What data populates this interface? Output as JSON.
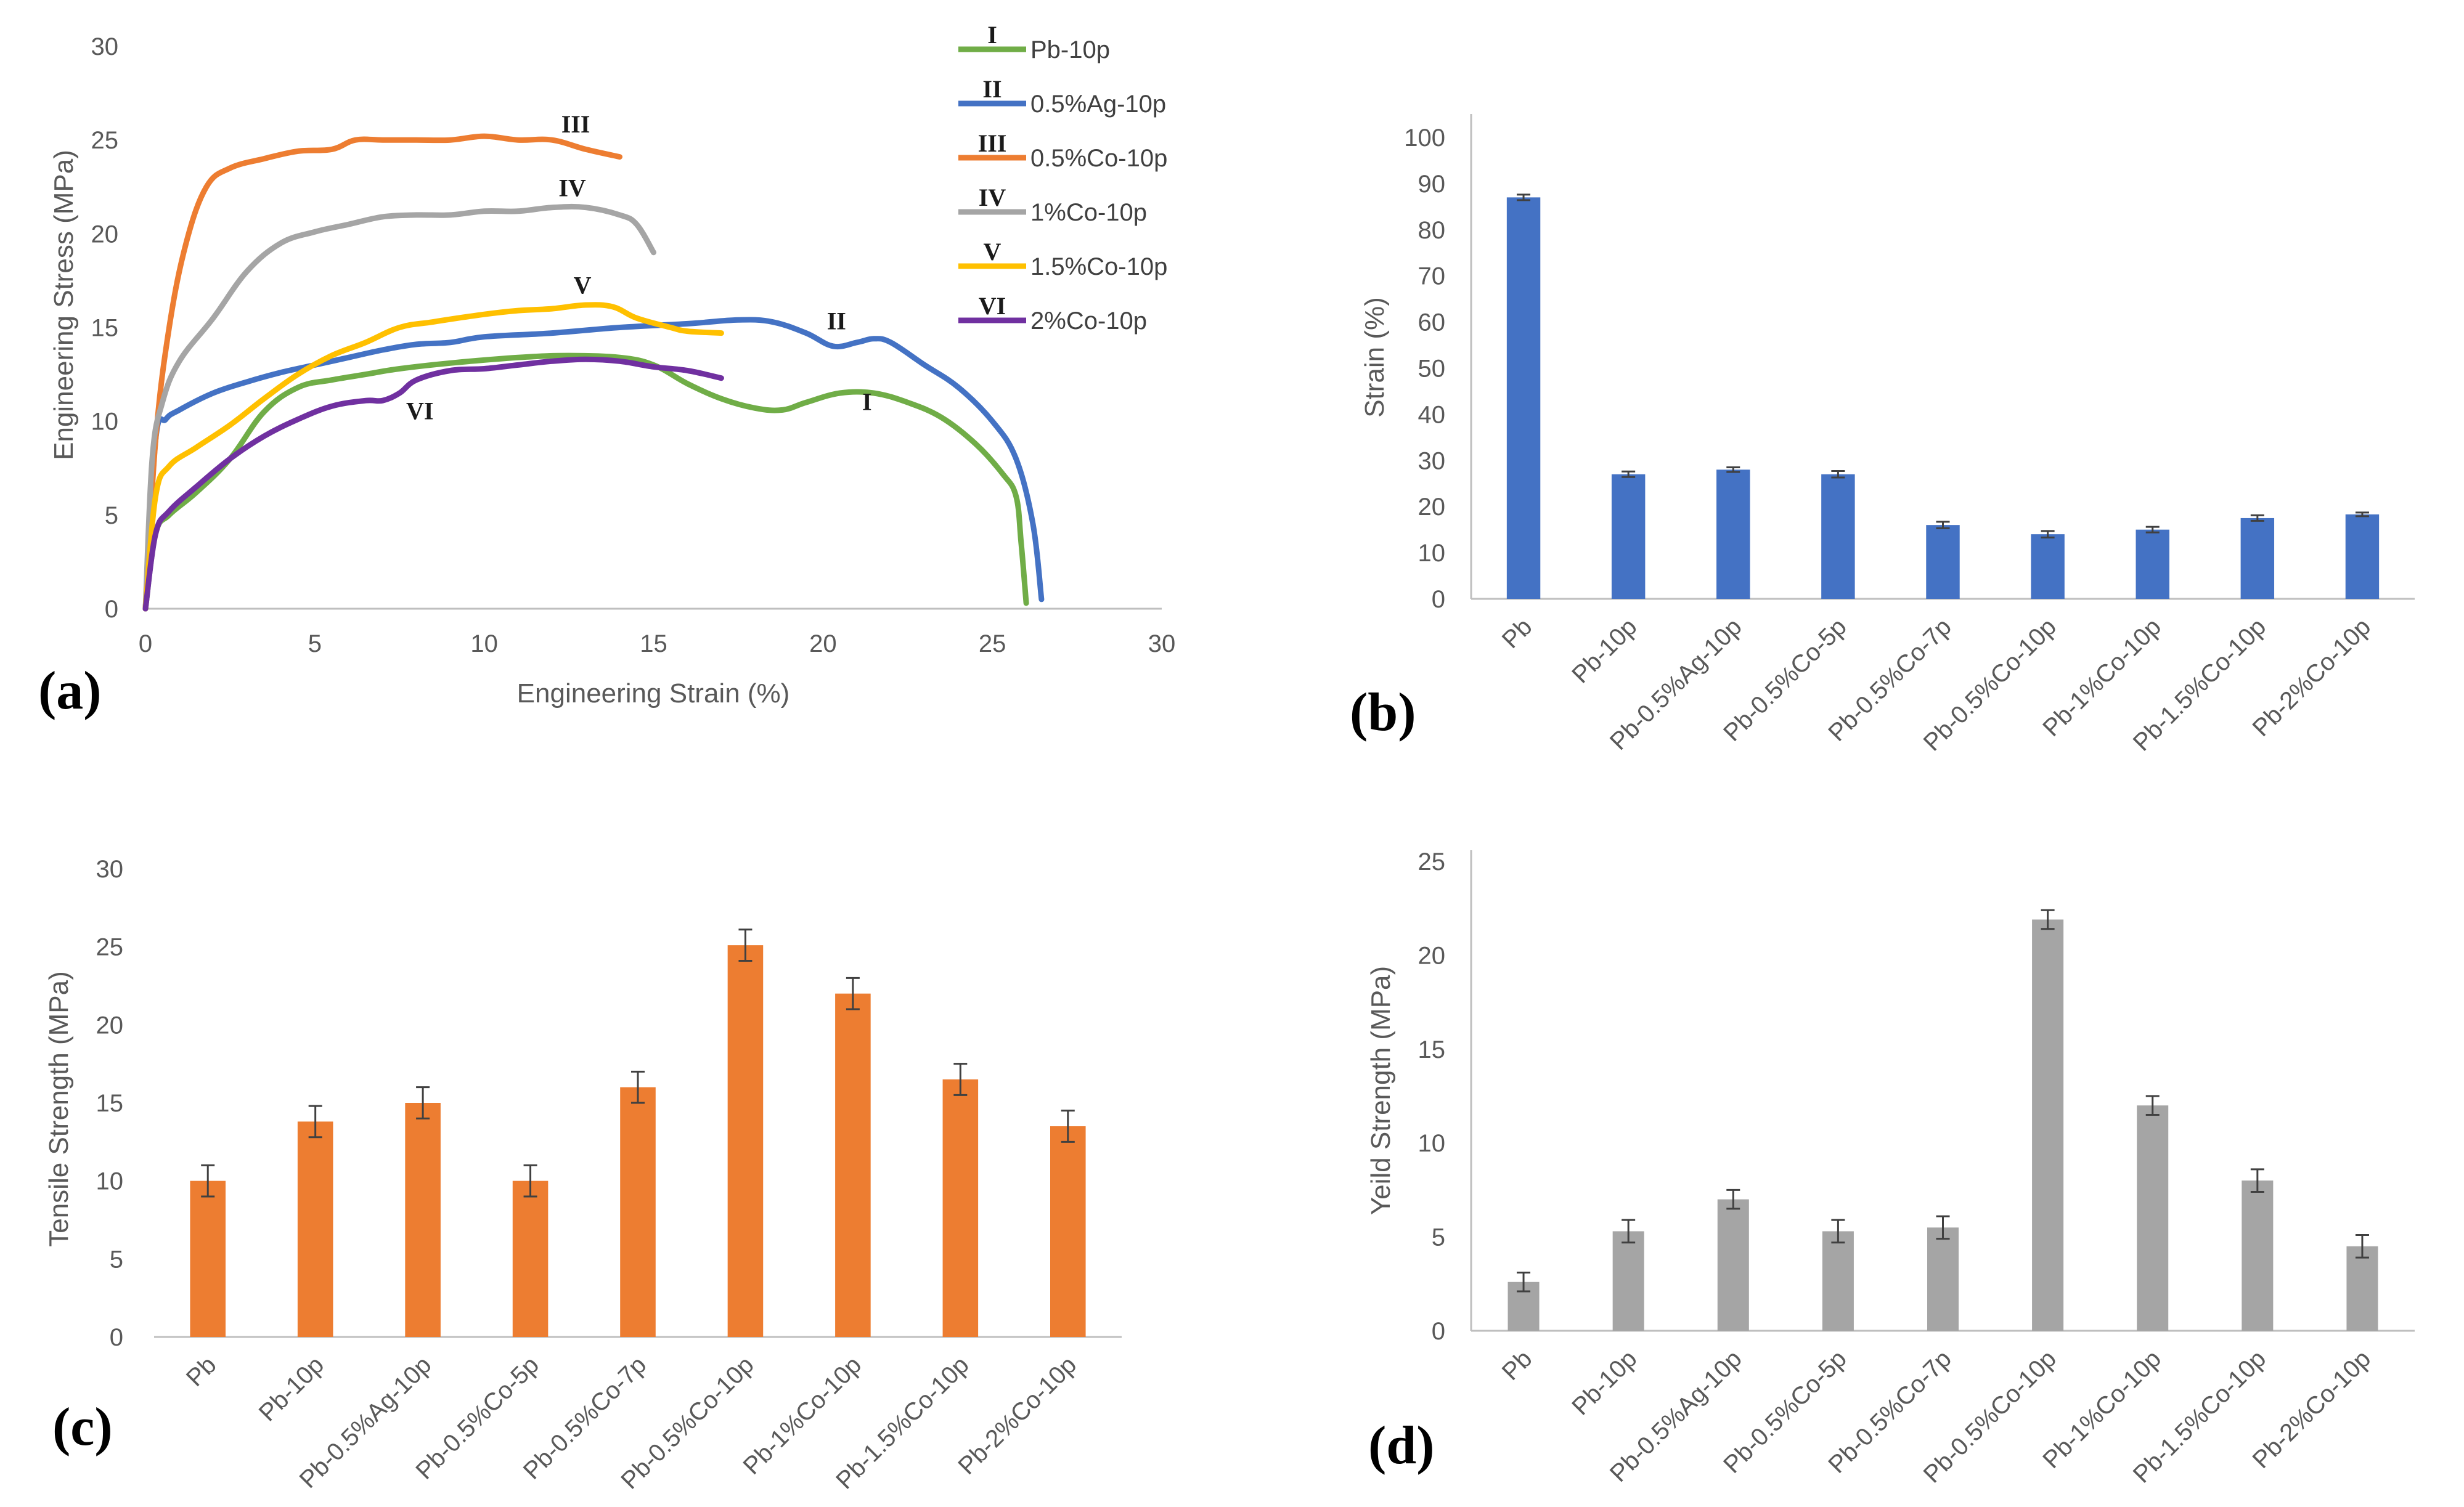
{
  "chart_data": [
    {
      "panel": "(a)",
      "type": "line",
      "title": "",
      "xlabel": "Engineering Strain (%)",
      "ylabel": "Engineering Stress (MPa)",
      "xlim": [
        0,
        30
      ],
      "ylim": [
        0,
        30
      ],
      "xticks": [
        "0",
        "5",
        "10",
        "15",
        "20",
        "25",
        "30"
      ],
      "yticks": [
        "0",
        "5",
        "10",
        "15",
        "20",
        "25",
        "30"
      ],
      "legend_position": "top-right",
      "series": [
        {
          "roman": "I",
          "name": "Pb-10p",
          "color": "#70ad47",
          "label_at": [
            21.3,
            10.6
          ],
          "points": [
            [
              0,
              0
            ],
            [
              0.3,
              4
            ],
            [
              0.7,
              5
            ],
            [
              1.5,
              6.2
            ],
            [
              2.5,
              8
            ],
            [
              3.5,
              10.5
            ],
            [
              4.5,
              11.8
            ],
            [
              5.5,
              12.2
            ],
            [
              6.5,
              12.5
            ],
            [
              7.5,
              12.8
            ],
            [
              9,
              13.1
            ],
            [
              11,
              13.4
            ],
            [
              12.5,
              13.5
            ],
            [
              14,
              13.4
            ],
            [
              15,
              13
            ],
            [
              16,
              12
            ],
            [
              17,
              11.2
            ],
            [
              18,
              10.7
            ],
            [
              18.8,
              10.6
            ],
            [
              19.5,
              11
            ],
            [
              20.5,
              11.5
            ],
            [
              21.5,
              11.5
            ],
            [
              22.5,
              11
            ],
            [
              23.5,
              10.2
            ],
            [
              24.5,
              8.8
            ],
            [
              25.3,
              7.2
            ],
            [
              25.7,
              6
            ],
            [
              25.85,
              3.5
            ],
            [
              26.0,
              0.3
            ]
          ]
        },
        {
          "roman": "II",
          "name": "0.5%Ag-10p",
          "color": "#4472c4",
          "label_at": [
            20.4,
            14.9
          ],
          "points": [
            [
              0,
              0
            ],
            [
              0.3,
              9
            ],
            [
              0.6,
              10.1
            ],
            [
              1,
              10.6
            ],
            [
              2,
              11.5
            ],
            [
              3,
              12.1
            ],
            [
              4,
              12.6
            ],
            [
              5,
              13
            ],
            [
              6,
              13.4
            ],
            [
              7,
              13.8
            ],
            [
              8,
              14.1
            ],
            [
              9,
              14.2
            ],
            [
              10,
              14.5
            ],
            [
              12,
              14.7
            ],
            [
              14,
              15
            ],
            [
              16,
              15.2
            ],
            [
              17.5,
              15.4
            ],
            [
              18.5,
              15.3
            ],
            [
              19.5,
              14.7
            ],
            [
              20.3,
              14
            ],
            [
              21,
              14.2
            ],
            [
              21.5,
              14.4
            ],
            [
              22,
              14.2
            ],
            [
              23,
              13
            ],
            [
              24,
              11.8
            ],
            [
              25,
              10
            ],
            [
              25.7,
              8
            ],
            [
              26.2,
              4.5
            ],
            [
              26.45,
              0.5
            ]
          ]
        },
        {
          "roman": "III",
          "name": "0.5%Co-10p",
          "color": "#ed7d31",
          "label_at": [
            12.7,
            25.4
          ],
          "points": [
            [
              0,
              0
            ],
            [
              0.3,
              9
            ],
            [
              0.7,
              15
            ],
            [
              1.2,
              19.5
            ],
            [
              1.8,
              22.5
            ],
            [
              2.5,
              23.5
            ],
            [
              3.5,
              24
            ],
            [
              4.5,
              24.4
            ],
            [
              5.5,
              24.5
            ],
            [
              6.2,
              25
            ],
            [
              7,
              25
            ],
            [
              8,
              25
            ],
            [
              9,
              25
            ],
            [
              10,
              25.2
            ],
            [
              11,
              25
            ],
            [
              12,
              25
            ],
            [
              13,
              24.5
            ],
            [
              14,
              24.1
            ]
          ]
        },
        {
          "roman": "IV",
          "name": "1%Co-10p",
          "color": "#a5a5a5",
          "label_at": [
            12.6,
            22.0
          ],
          "points": [
            [
              0,
              0
            ],
            [
              0.2,
              8
            ],
            [
              0.5,
              11
            ],
            [
              1,
              13.2
            ],
            [
              2,
              15.5
            ],
            [
              3,
              18
            ],
            [
              4,
              19.5
            ],
            [
              5,
              20.1
            ],
            [
              6,
              20.5
            ],
            [
              7,
              20.9
            ],
            [
              8,
              21
            ],
            [
              9,
              21
            ],
            [
              10,
              21.2
            ],
            [
              11,
              21.2
            ],
            [
              12,
              21.4
            ],
            [
              13,
              21.4
            ],
            [
              14,
              21
            ],
            [
              14.5,
              20.5
            ],
            [
              15,
              19
            ]
          ]
        },
        {
          "roman": "V",
          "name": "1.5%Co-10p",
          "color": "#ffc000",
          "label_at": [
            12.9,
            16.8
          ],
          "points": [
            [
              0,
              0
            ],
            [
              0.3,
              6
            ],
            [
              0.7,
              7.6
            ],
            [
              1.5,
              8.6
            ],
            [
              2.5,
              9.8
            ],
            [
              3.5,
              11.2
            ],
            [
              4.5,
              12.5
            ],
            [
              5.5,
              13.5
            ],
            [
              6.5,
              14.2
            ],
            [
              7.5,
              15
            ],
            [
              8.5,
              15.3
            ],
            [
              10,
              15.7
            ],
            [
              11,
              15.9
            ],
            [
              12,
              16
            ],
            [
              13,
              16.2
            ],
            [
              13.8,
              16.1
            ],
            [
              14.5,
              15.5
            ],
            [
              15.5,
              15
            ],
            [
              16,
              14.8
            ],
            [
              17,
              14.7
            ]
          ]
        },
        {
          "roman": "VI",
          "name": "2%Co-10p",
          "color": "#7030a0",
          "label_at": [
            8.1,
            10.1
          ],
          "points": [
            [
              0,
              0
            ],
            [
              0.3,
              4
            ],
            [
              0.7,
              5.2
            ],
            [
              1.5,
              6.5
            ],
            [
              2.5,
              8
            ],
            [
              3.5,
              9.2
            ],
            [
              4.5,
              10.1
            ],
            [
              5.5,
              10.8
            ],
            [
              6.5,
              11.1
            ],
            [
              7,
              11.1
            ],
            [
              7.5,
              11.5
            ],
            [
              8,
              12.2
            ],
            [
              9,
              12.7
            ],
            [
              10,
              12.8
            ],
            [
              11,
              13
            ],
            [
              12,
              13.2
            ],
            [
              13,
              13.3
            ],
            [
              14,
              13.2
            ],
            [
              15,
              12.9
            ],
            [
              16,
              12.7
            ],
            [
              17,
              12.3
            ]
          ]
        }
      ]
    },
    {
      "panel": "(b)",
      "type": "bar",
      "title": "",
      "xlabel": "",
      "ylabel": "Strain (%)",
      "ylim": [
        0,
        100
      ],
      "yticks": [
        "0",
        "10",
        "20",
        "30",
        "40",
        "50",
        "60",
        "70",
        "80",
        "90",
        "100"
      ],
      "color": "#4472c4",
      "categories": [
        "Pb",
        "Pb-10p",
        "Pb-0.5%Ag-10p",
        "Pb-0.5%Co-5p",
        "Pb-0.5%Co-7p",
        "Pb-0.5%Co-10p",
        "Pb-1%Co-10p",
        "Pb-1.5%Co-10p",
        "Pb-2%Co-10p"
      ],
      "values": [
        87,
        27,
        28,
        27,
        16,
        14,
        15,
        17.5,
        18.3
      ],
      "errors": [
        0.6,
        0.6,
        0.5,
        0.7,
        0.7,
        0.7,
        0.6,
        0.6,
        0.4
      ]
    },
    {
      "panel": "(c)",
      "type": "bar",
      "title": "",
      "xlabel": "",
      "ylabel": "Tensile Strength (MPa)",
      "ylim": [
        0,
        30
      ],
      "yticks": [
        "0",
        "5",
        "10",
        "15",
        "20",
        "25",
        "30"
      ],
      "color": "#ed7d31",
      "categories": [
        "Pb",
        "Pb-10p",
        "Pb-0.5%Ag-10p",
        "Pb-0.5%Co-5p",
        "Pb-0.5%Co-7p",
        "Pb-0.5%Co-10p",
        "Pb-1%Co-10p",
        "Pb-1.5%Co-10p",
        "Pb-2%Co-10p"
      ],
      "values": [
        10,
        13.8,
        15,
        10,
        16,
        25.1,
        22,
        16.5,
        13.5
      ],
      "errors": [
        1,
        1,
        1,
        1,
        1,
        1,
        1,
        1,
        1
      ]
    },
    {
      "panel": "(d)",
      "type": "bar",
      "title": "",
      "xlabel": "",
      "ylabel": "Yeild Strength (MPa)",
      "ylim": [
        0,
        25
      ],
      "yticks": [
        "0",
        "5",
        "10",
        "15",
        "20",
        "25"
      ],
      "color": "#a5a5a5",
      "categories": [
        "Pb",
        "Pb-10p",
        "Pb-0.5%Ag-10p",
        "Pb-0.5%Co-5p",
        "Pb-0.5%Co-7p",
        "Pb-0.5%Co-10p",
        "Pb-1%Co-10p",
        "Pb-1.5%Co-10p",
        "Pb-2%Co-10p"
      ],
      "values": [
        2.6,
        5.3,
        7,
        5.3,
        5.5,
        21.9,
        12,
        8,
        4.5
      ],
      "errors": [
        0.5,
        0.6,
        0.5,
        0.6,
        0.6,
        0.5,
        0.5,
        0.6,
        0.6
      ]
    }
  ]
}
